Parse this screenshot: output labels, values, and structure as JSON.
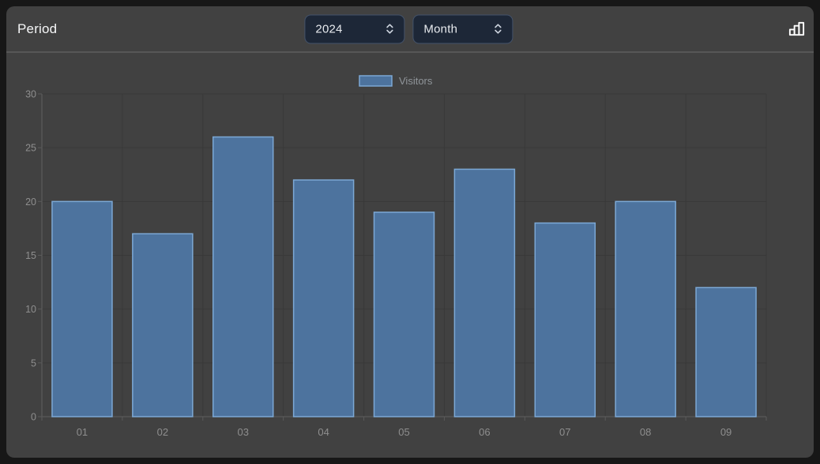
{
  "header": {
    "title": "Period",
    "year_select": {
      "value": "2024"
    },
    "granularity_select": {
      "value": "Month"
    },
    "chart_type_icon": "bar-chart-icon"
  },
  "chart_data": {
    "type": "bar",
    "title": "",
    "categories": [
      "01",
      "02",
      "03",
      "04",
      "05",
      "06",
      "07",
      "08",
      "09"
    ],
    "series": [
      {
        "name": "Visitors",
        "values": [
          20,
          17,
          26,
          22,
          19,
          23,
          18,
          20,
          12
        ]
      }
    ],
    "xlabel": "",
    "ylabel": "",
    "ylim": [
      0,
      30
    ],
    "yticks": [
      0,
      5,
      10,
      15,
      20,
      25,
      30
    ],
    "grid": true,
    "legend_position": "top-center"
  },
  "colors": {
    "outer_bg": "#171717",
    "panel_bg": "#414141",
    "header_divider": "#575757",
    "select_bg": "#1d2737",
    "select_border": "#44536b",
    "select_text": "#e7eaee",
    "bar_fill": "#4d739e",
    "bar_stroke": "#7ca8d5",
    "gridline": "#393939",
    "axis_line": "#5a5a5a",
    "tick_text": "#8e8e8e",
    "legend_text": "#90959a",
    "title_text": "#f5f6f7"
  }
}
